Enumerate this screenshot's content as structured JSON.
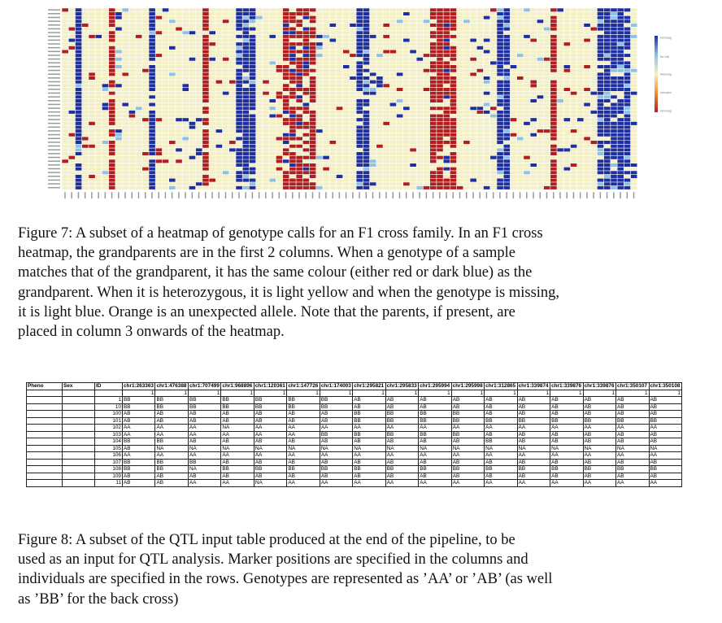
{
  "figure7": {
    "legend": [
      "Homozygous A",
      "No Call",
      "Heterozygous",
      "Unexpected",
      "Homozygous B"
    ],
    "colors": {
      "homozygous_a": "#1f2f9e",
      "no_call": "#8fc1e4",
      "heterozygous": "#f3efc7",
      "unexpected": "#f29a3a",
      "homozygous_b": "#b01f1f",
      "grid": "#ffffff"
    },
    "caption_lines": [
      "Figure 7: A subset of a heatmap of genotype calls for an F1 cross family. In an F1 cross",
      "heatmap, the grandparents are in the first 2 columns. When a genotype of a sample",
      "matches that of the grandparent, it has the same colour (either red or dark blue) as the",
      "grandparent. When it is heterozygous, it is light yellow and when the genotype is missing,",
      "it is light blue. Orange is an unexpected allele. Note that the parents, if present, are",
      "placed in column 3 onwards of the heatmap."
    ]
  },
  "figure8": {
    "headers": [
      "Pheno",
      "Sex",
      "ID",
      "chr1:263363",
      "chr1:476388",
      "chr1:707499",
      "chr1:968896",
      "chr1:120361",
      "chr1:147726",
      "chr1:174003",
      "chr1:295821",
      "chr1:295833",
      "chr1:295994",
      "chr1:295998",
      "chr1:312865",
      "chr1:339874",
      "chr1:339876",
      "chr1:339876",
      "chr1:350107",
      "chr1:350108"
    ],
    "ones_row": [
      "1",
      "1",
      "1",
      "1",
      "1",
      "1",
      "1",
      "1",
      "1",
      "1",
      "1",
      "1",
      "1",
      "1",
      "1",
      "1",
      "1"
    ],
    "rows": [
      {
        "id": "1",
        "g": [
          "BB",
          "BB",
          "BB",
          "BB",
          "BB",
          "BB",
          "BB",
          "AB",
          "AB",
          "AB",
          "AB",
          "AB",
          "AB",
          "AB",
          "AB",
          "AB",
          "AB"
        ]
      },
      {
        "id": "10",
        "g": [
          "BB",
          "BB",
          "BB",
          "BB",
          "BB",
          "BB",
          "BB",
          "AB",
          "AB",
          "AB",
          "AB",
          "AB",
          "AB",
          "AB",
          "AB",
          "AB",
          "AB"
        ]
      },
      {
        "id": "100",
        "g": [
          "AB",
          "AB",
          "AB",
          "AB",
          "AB",
          "AB",
          "AB",
          "BB",
          "BB",
          "BB",
          "BB",
          "AB",
          "AB",
          "AB",
          "AB",
          "AB",
          "AB"
        ]
      },
      {
        "id": "101",
        "g": [
          "AB",
          "AB",
          "AB",
          "AB",
          "AB",
          "AB",
          "AB",
          "BB",
          "BB",
          "BB",
          "BB",
          "BB",
          "BB",
          "BB",
          "BB",
          "BB",
          "BB"
        ]
      },
      {
        "id": "102",
        "g": [
          "AA",
          "AA",
          "AA",
          "NA",
          "AA",
          "AA",
          "AA",
          "AA",
          "AA",
          "AA",
          "AA",
          "AA",
          "AA",
          "AA",
          "AA",
          "AA",
          "AA"
        ]
      },
      {
        "id": "103",
        "g": [
          "AA",
          "AA",
          "AA",
          "AA",
          "AA",
          "AA",
          "BB",
          "BB",
          "BB",
          "BB",
          "BB",
          "AB",
          "AB",
          "AB",
          "AB",
          "AB",
          "AB"
        ]
      },
      {
        "id": "104",
        "g": [
          "BB",
          "BB",
          "AB",
          "AB",
          "AB",
          "AB",
          "AB",
          "AB",
          "AB",
          "AB",
          "AB",
          "BB",
          "AB",
          "AB",
          "AB",
          "AB",
          "AB"
        ]
      },
      {
        "id": "105",
        "g": [
          "AB",
          "NA",
          "NA",
          "NA",
          "NA",
          "NA",
          "NA",
          "NA",
          "NA",
          "NA",
          "NA",
          "NA",
          "NA",
          "NA",
          "NA",
          "NA",
          "NA"
        ]
      },
      {
        "id": "106",
        "g": [
          "AA",
          "AA",
          "AA",
          "AA",
          "AA",
          "AA",
          "AA",
          "AA",
          "AA",
          "AA",
          "AA",
          "AA",
          "AA",
          "AA",
          "AA",
          "AA",
          "AA"
        ]
      },
      {
        "id": "107",
        "g": [
          "BB",
          "BB",
          "BB",
          "AB",
          "AB",
          "AB",
          "AB",
          "AB",
          "AB",
          "AB",
          "AB",
          "AB",
          "AB",
          "AB",
          "AB",
          "AB",
          "AB"
        ]
      },
      {
        "id": "108",
        "g": [
          "BB",
          "BB",
          "NA",
          "BB",
          "BB",
          "BB",
          "BB",
          "BB",
          "BB",
          "BB",
          "BB",
          "BB",
          "BB",
          "BB",
          "BB",
          "BB",
          "BB"
        ]
      },
      {
        "id": "109",
        "g": [
          "AB",
          "AB",
          "AB",
          "AB",
          "AB",
          "AB",
          "AB",
          "AB",
          "AB",
          "AB",
          "AB",
          "AB",
          "AB",
          "AB",
          "AB",
          "AB",
          "AB"
        ]
      },
      {
        "id": "11",
        "g": [
          "AB",
          "AB",
          "AA",
          "AA",
          "NA",
          "AA",
          "AA",
          "AA",
          "AA",
          "AA",
          "AA",
          "AA",
          "AA",
          "AA",
          "AA",
          "AA",
          "AA"
        ]
      }
    ],
    "caption_lines": [
      "Figure 8: A subset of the QTL input table produced at the end of the pipeline, to be",
      "used as an input for QTL analysis. Marker positions are specified in the columns and",
      "individuals are specified in the rows. Genotypes are represented as ’AA’ or ’AB’ (as well",
      "as ’BB’ for the back cross)"
    ]
  }
}
